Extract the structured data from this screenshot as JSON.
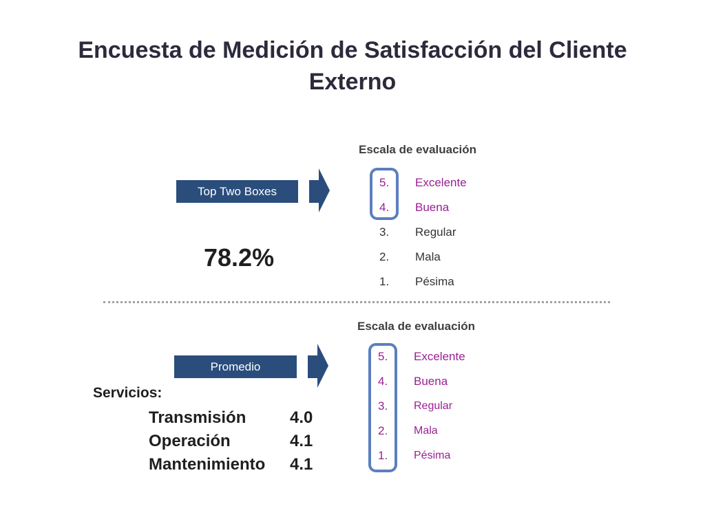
{
  "title": "Encuesta de Medición de Satisfacción del Cliente Externo",
  "top_section": {
    "scale_heading": "Escala de evaluación",
    "bar_label": "Top Two Boxes",
    "percentage": "78.2%",
    "scale": [
      {
        "num": "5.",
        "label": "Excelente"
      },
      {
        "num": "4.",
        "label": "Buena"
      },
      {
        "num": "3.",
        "label": "Regular"
      },
      {
        "num": "2.",
        "label": "Mala"
      },
      {
        "num": "1.",
        "label": "Pésima"
      }
    ]
  },
  "bottom_section": {
    "scale_heading": "Escala de evaluación",
    "bar_label": "Promedio",
    "services_heading": "Servicios:",
    "services": [
      {
        "name": "Transmisión",
        "value": "4.0"
      },
      {
        "name": "Operación",
        "value": "4.1"
      },
      {
        "name": "Mantenimiento",
        "value": "4.1"
      }
    ],
    "scale": [
      {
        "num": "5.",
        "label": "Excelente"
      },
      {
        "num": "4.",
        "label": "Buena"
      },
      {
        "num": "3.",
        "label": "Regular"
      },
      {
        "num": "2.",
        "label": "Mala"
      },
      {
        "num": "1.",
        "label": "Pésima"
      }
    ]
  },
  "colors": {
    "bar": "#2a4d7c",
    "highlight_text": "#9a1f92",
    "ring": "#5b7fbf"
  }
}
